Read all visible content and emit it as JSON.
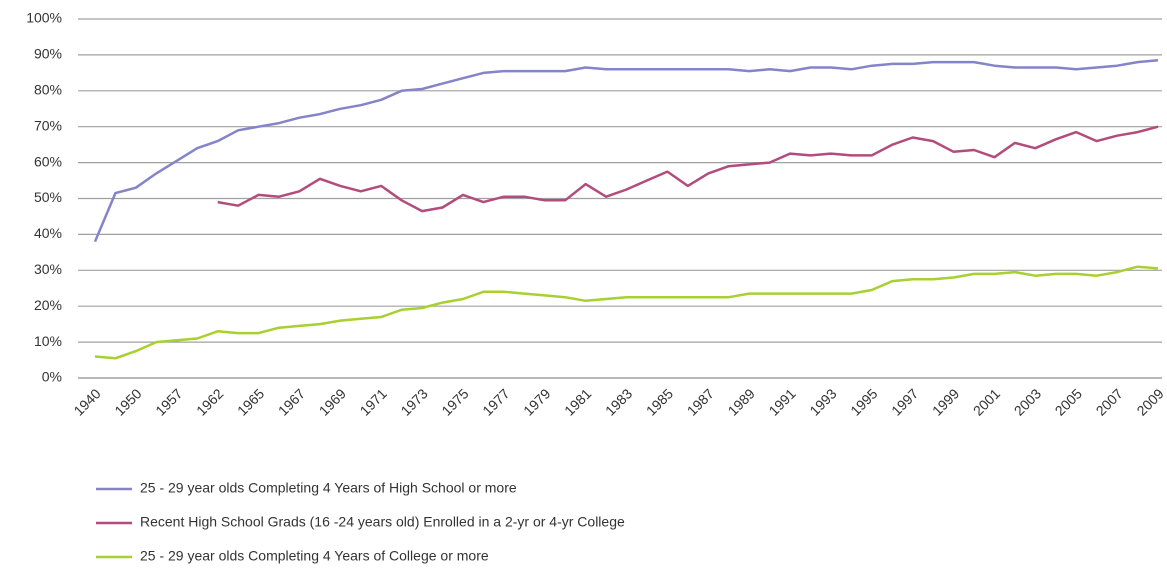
{
  "chart_data": {
    "type": "line",
    "categories": [
      "1940",
      null,
      "1950",
      null,
      "1957",
      null,
      "1962",
      null,
      "1965",
      null,
      "1967",
      null,
      "1969",
      null,
      "1971",
      null,
      "1973",
      null,
      "1975",
      null,
      "1977",
      null,
      "1979",
      null,
      "1981",
      null,
      "1983",
      null,
      "1985",
      null,
      "1987",
      null,
      "1989",
      null,
      "1991",
      null,
      "1993",
      null,
      "1995",
      null,
      "1997",
      null,
      "1999",
      null,
      "2001",
      null,
      "2003",
      null,
      "2005",
      null,
      "2007",
      null,
      "2009"
    ],
    "series": [
      {
        "name": "25 - 29 year olds Completing 4 Years of High School or more",
        "color": "#8484c8",
        "values": [
          38,
          51.5,
          53,
          57,
          60.5,
          64,
          66,
          69,
          70,
          71,
          72.5,
          73.5,
          75,
          76,
          77.5,
          80,
          80.5,
          82,
          83.5,
          85,
          85.5,
          85.5,
          85.5,
          85.5,
          86.5,
          86,
          86,
          86,
          86,
          86,
          86,
          86,
          85.5,
          86,
          85.5,
          86.5,
          86.5,
          86,
          87,
          87.5,
          87.5,
          88,
          88,
          88,
          87,
          86.5,
          86.5,
          86.5,
          86,
          86.5,
          87,
          88,
          88.5
        ]
      },
      {
        "name": "Recent High School Grads (16 -24 years old) Enrolled in a 2-yr or 4-yr College",
        "color": "#b24c7c",
        "values": [
          null,
          null,
          null,
          null,
          null,
          null,
          49,
          48,
          51,
          50.5,
          52,
          55.5,
          53.5,
          52,
          53.5,
          49.5,
          46.5,
          47.5,
          51,
          49,
          50.5,
          50.5,
          49.5,
          49.5,
          54,
          50.5,
          52.5,
          55,
          57.5,
          53.5,
          57,
          59,
          59.5,
          60,
          62.5,
          62,
          62.5,
          62,
          62,
          65,
          67,
          66,
          63,
          63.5,
          61.5,
          65.5,
          64,
          66.5,
          68.5,
          66,
          67.5,
          68.5,
          70
        ]
      },
      {
        "name": "25 - 29 year olds Completing 4 Years of College or more",
        "color": "#a8d030",
        "values": [
          6,
          5.5,
          7.5,
          10,
          10.5,
          11,
          13,
          12.5,
          12.5,
          14,
          14.5,
          15,
          16,
          16.5,
          17,
          19,
          19.5,
          21,
          22,
          24,
          24,
          23.5,
          23,
          22.5,
          21.5,
          22,
          22.5,
          22.5,
          22.5,
          22.5,
          22.5,
          22.5,
          23.5,
          23.5,
          23.5,
          23.5,
          23.5,
          23.5,
          24.5,
          27,
          27.5,
          27.5,
          28,
          29,
          29,
          29.5,
          28.5,
          29,
          29,
          28.5,
          29.5,
          31,
          30.5
        ]
      }
    ],
    "ylim": [
      0,
      100
    ],
    "yticks": [
      {
        "value": 0,
        "label": "0%"
      },
      {
        "value": 10,
        "label": "10%"
      },
      {
        "value": 20,
        "label": "20%"
      },
      {
        "value": 30,
        "label": "30%"
      },
      {
        "value": 40,
        "label": "40%"
      },
      {
        "value": 50,
        "label": "50%"
      },
      {
        "value": 60,
        "label": "60%"
      },
      {
        "value": 70,
        "label": "70%"
      },
      {
        "value": 80,
        "label": "80%"
      },
      {
        "value": 90,
        "label": "90%"
      },
      {
        "value": 100,
        "label": "100%"
      }
    ],
    "grid": true,
    "legend": "bottom"
  }
}
